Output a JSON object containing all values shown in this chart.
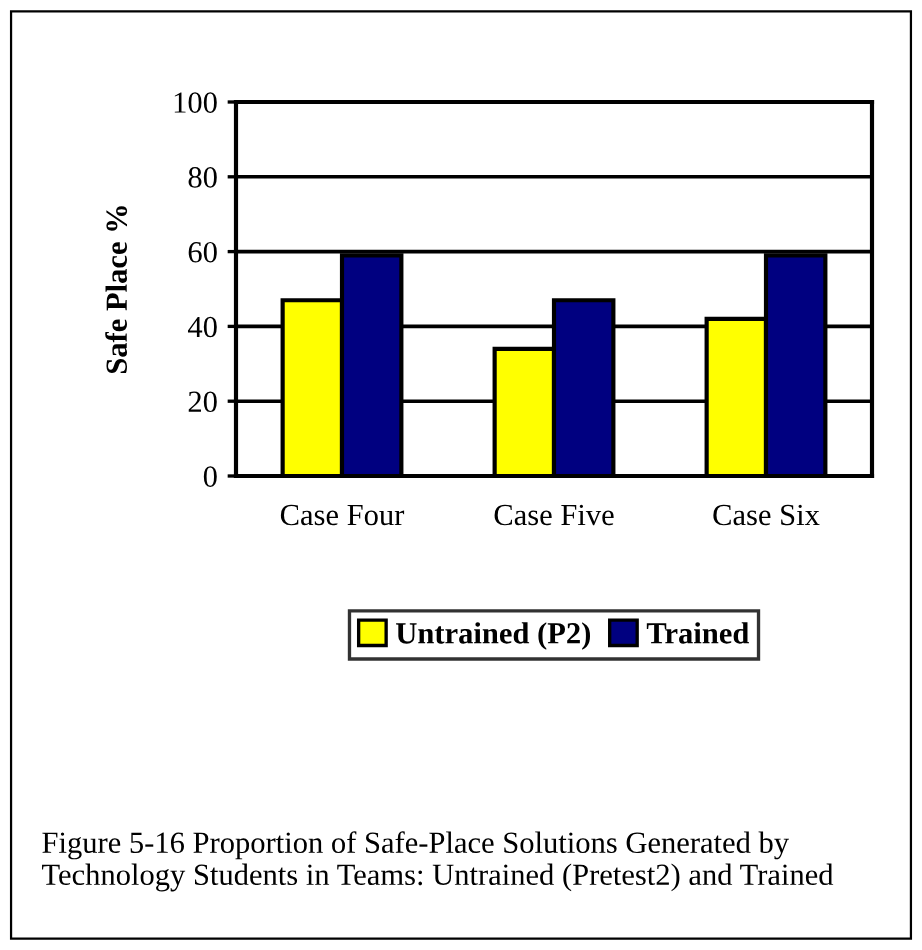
{
  "chart_data": {
    "type": "bar",
    "ylabel": "Safe Place %",
    "categories": [
      "Case Four",
      "Case Five",
      "Case Six"
    ],
    "series": [
      {
        "name": "Untrained (P2)",
        "color": "#ffff00",
        "values": [
          47,
          34,
          42
        ]
      },
      {
        "name": "Trained",
        "color": "#000080",
        "values": [
          59,
          47,
          59
        ]
      }
    ],
    "ylim": [
      0,
      100
    ],
    "yticks": [
      0,
      20,
      40,
      60,
      80,
      100
    ],
    "grid": "y",
    "legend": "bottom",
    "annotations": [
      "Figure 5-16 Proportion of Safe-Place Solutions Generated by Technology Students in Teams: Untrained (Pretest2) and Trained"
    ]
  }
}
